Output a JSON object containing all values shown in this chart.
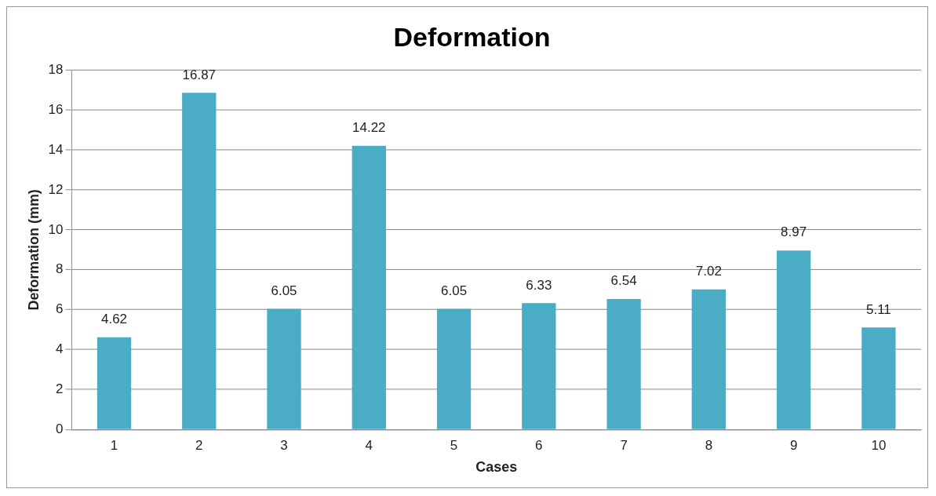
{
  "chart_data": {
    "type": "bar",
    "title": "Deformation",
    "xlabel": "Cases",
    "ylabel": "Deformation (mm)",
    "categories": [
      "1",
      "2",
      "3",
      "4",
      "5",
      "6",
      "7",
      "8",
      "9",
      "10"
    ],
    "values": [
      4.62,
      16.87,
      6.05,
      14.22,
      6.05,
      6.33,
      6.54,
      7.02,
      8.97,
      5.11
    ],
    "color": "#4bacc6",
    "ylim": [
      0,
      18
    ],
    "yticks": [
      0,
      2,
      4,
      6,
      8,
      10,
      12,
      14,
      16,
      18
    ],
    "grid": "y",
    "data_labels": true,
    "legend": false
  }
}
